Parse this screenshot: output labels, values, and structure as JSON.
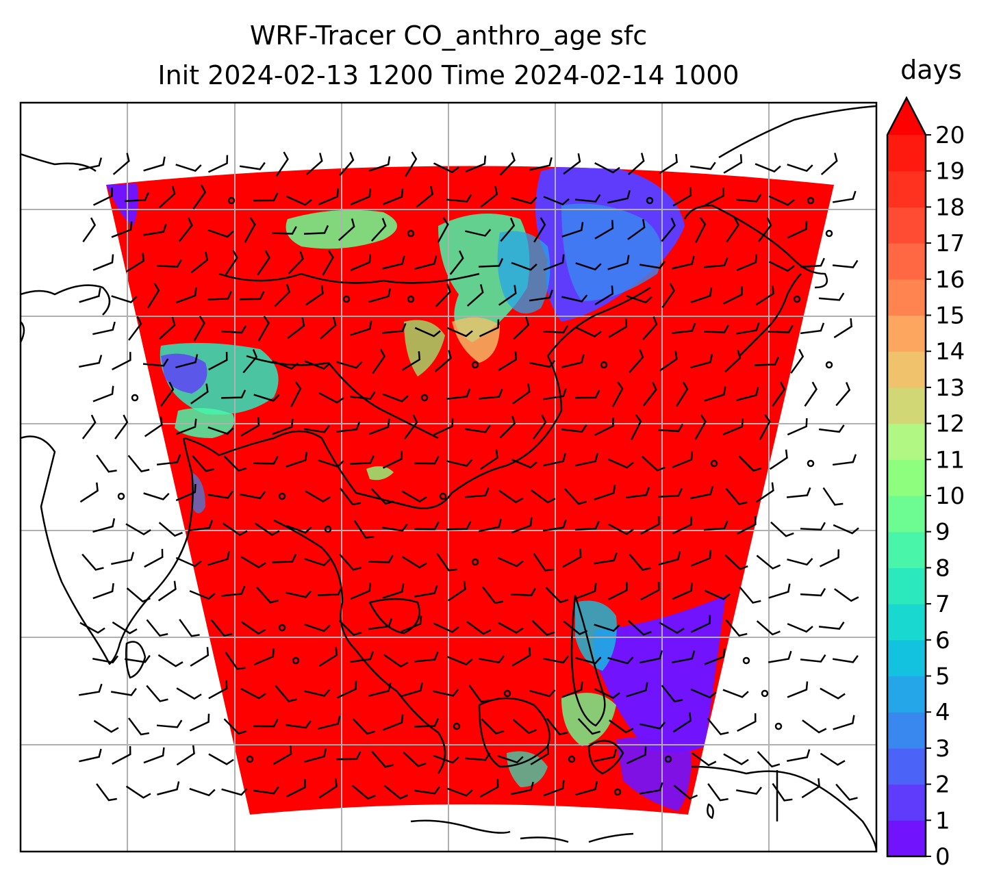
{
  "title": {
    "line1": "WRF-Tracer CO_anthro_age sfc",
    "line2": "Init 2024-02-13 1200 Time 2024-02-14 1000"
  },
  "colorbar": {
    "label": "days",
    "min": 0,
    "max": 20,
    "extend": "max",
    "ticks": [
      0,
      1,
      2,
      3,
      4,
      5,
      6,
      7,
      8,
      9,
      10,
      11,
      12,
      13,
      14,
      15,
      16,
      17,
      18,
      19,
      20
    ],
    "colors": [
      "#7213fd",
      "#5f3cfb",
      "#4c63f7",
      "#3888f0",
      "#25a6e9",
      "#12c2de",
      "#18d8cf",
      "#2be8bd",
      "#49f5a8",
      "#6cfc92",
      "#8dfe7e",
      "#b0f784",
      "#d0d774",
      "#f0c26c",
      "#fca660",
      "#ff8450",
      "#ff6842",
      "#ff4c32",
      "#ff3220",
      "#ff1a10"
    ],
    "extend_color": "#ff0000"
  },
  "map": {
    "field_dominant_color": "#ff0000",
    "low_age_color": "#7213fd",
    "coastline_color": "#000000",
    "gridline_color": "#b0b0b0",
    "wind_barbs": "shown",
    "gridlines": "on"
  }
}
